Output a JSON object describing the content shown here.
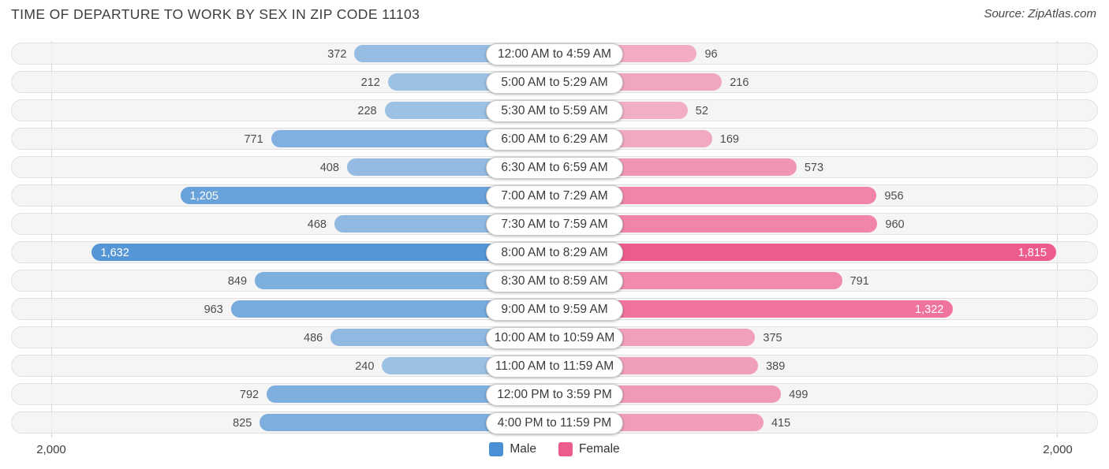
{
  "title": "TIME OF DEPARTURE TO WORK BY SEX IN ZIP CODE 11103",
  "source": "Source: ZipAtlas.com",
  "axis": {
    "left_label": "2,000",
    "right_label": "2,000",
    "max": 2000
  },
  "legend": {
    "male_label": "Male",
    "female_label": "Female"
  },
  "colors": {
    "male": "#4a90d4",
    "female": "#ee5c8f"
  },
  "chart_data": {
    "type": "bar",
    "orientation": "diverging-horizontal",
    "title": "TIME OF DEPARTURE TO WORK BY SEX IN ZIP CODE 11103",
    "categories": [
      "12:00 AM to 4:59 AM",
      "5:00 AM to 5:29 AM",
      "5:30 AM to 5:59 AM",
      "6:00 AM to 6:29 AM",
      "6:30 AM to 6:59 AM",
      "7:00 AM to 7:29 AM",
      "7:30 AM to 7:59 AM",
      "8:00 AM to 8:29 AM",
      "8:30 AM to 8:59 AM",
      "9:00 AM to 9:59 AM",
      "10:00 AM to 10:59 AM",
      "11:00 AM to 11:59 AM",
      "12:00 PM to 3:59 PM",
      "4:00 PM to 11:59 PM"
    ],
    "series": [
      {
        "name": "Male",
        "color": "#4a90d4",
        "values": [
          372,
          212,
          228,
          771,
          408,
          1205,
          468,
          1632,
          849,
          963,
          486,
          240,
          792,
          825
        ]
      },
      {
        "name": "Female",
        "color": "#ee5c8f",
        "values": [
          96,
          216,
          52,
          169,
          573,
          956,
          960,
          1815,
          791,
          1322,
          375,
          389,
          499,
          415
        ]
      }
    ],
    "xlim": [
      -2000,
      2000
    ],
    "legend_position": "bottom-center",
    "grid": "vertical-max-lines-only"
  }
}
